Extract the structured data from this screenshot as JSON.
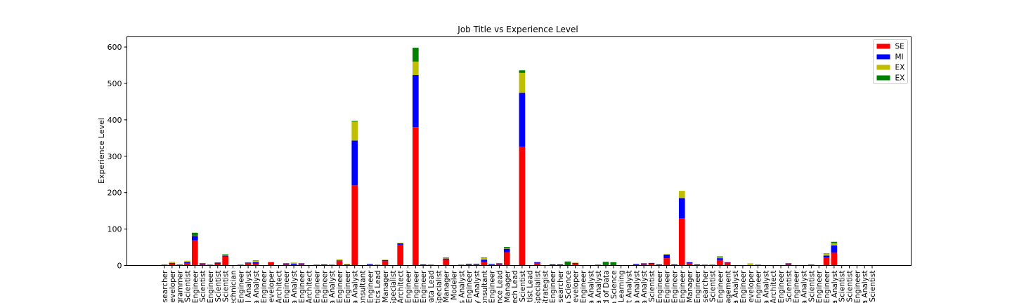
{
  "chart_data": {
    "type": "bar",
    "stacked": true,
    "title": "Job Title vs Experience Level",
    "xlabel": "",
    "ylabel": "Experience Level",
    "ylim": [
      0,
      628
    ],
    "yticks": [
      0,
      100,
      200,
      300,
      400,
      500,
      600
    ],
    "grid": false,
    "legend_position": "top-right",
    "categories": [
      "AI Researcher",
      "AI Developer",
      "AI Programmer",
      "AI Scientist",
      "Analytics Engineer",
      "Applied Data Scientist",
      "Applied Machine Learning Engineer",
      "Applied Machine Learning Scientist",
      "Applied Scientist",
      "Autonomous Vehicle Technician",
      "Azure Data Engineer",
      "BI Analyst",
      "BI Data Analyst",
      "BI Data Engineer",
      "BI Developer",
      "Big Data Architect",
      "Big Data Engineer",
      "Business Data Analyst",
      "Business Intelligence Engineer",
      "Cloud Data Architect",
      "Cloud Data Engineer",
      "Cloud Database Engineer",
      "Compliance Data Analyst",
      "Computer Vision Engineer",
      "Computer Vision Software Engineer",
      "Data Analyst",
      "Data Analytics Consultant",
      "Data Analytics Engineer",
      "Data Analytics Lead",
      "Data Analytics Manager",
      "Data Analytics Specialist",
      "Data Architect",
      "Data DevOps Engineer",
      "Data Engineer",
      "Data Infrastructure Engineer",
      "Data Lead",
      "Data Management Specialist",
      "Data Manager",
      "Data Modeler",
      "Data Operations Analyst",
      "Data Operations Engineer",
      "Data Quality Analyst",
      "Data Science Consultant",
      "Data Science Engineer",
      "Data Science Lead",
      "Data Science Manager",
      "Data Science Tech Lead",
      "Data Scientist",
      "Data Scientist Lead",
      "Data Specialist",
      "Data Strategist",
      "Deep Learning Engineer",
      "Deep Learning Researcher",
      "Director of Data Science",
      "ETL Developer",
      "ETL Engineer",
      "Finance Data Analyst",
      "Financial Data Analyst",
      "Head of Data",
      "Head of Data Science",
      "Head of Machine Learning",
      "Insight Analyst",
      "Lead Data Analyst",
      "Machine Learning Data Analyst",
      "Machine Learning Scientist",
      "Machine Learning Infrastructure Engineer",
      "ML Engineer",
      "MLOps Engineer",
      "Machine Learning Engineer",
      "Machine Learning Manager",
      "Machine Learning Software Engineer",
      "Machine Learning Researcher",
      "Machine Learning Research Scientist",
      "NLP Engineer",
      "Manager Data Management",
      "Marketing Data Analyst",
      "Marketing Data Engineer",
      "Power BI Developer",
      "Principal Data Engineer",
      "Principal Data Analyst",
      "Principal Data Architect",
      "Principal Data Engineer",
      "Principal Data Scientist",
      "Principal Machine Learning Engineer",
      "Product Data Analyst",
      "Research Scientist",
      "Research Engineer",
      "Software Data Engineer",
      "Staff Data Analyst",
      "Staff Data Scientist",
      "Research Scientist",
      "Research Engineer",
      "Product Data Analyst",
      "Staff Data Scientist"
    ],
    "tick_labels_visible": [
      "esearcher",
      "Developer",
      "rogrammer",
      "Scientist",
      "Engineer",
      "Scientist",
      "Engineer",
      "Scientist",
      "Scientist",
      "echnician",
      "Engineer",
      "I Analyst",
      "a Analyst",
      "Engineer",
      "Developer",
      "Architect",
      "Engineer",
      "a Analyst",
      "Engineer",
      "Architect",
      "Engineer",
      "Engineer",
      "a Analyst",
      "Engineer",
      "Engineer",
      "a Analyst",
      "onsultant",
      "Engineer",
      "tics Lead",
      "Manager",
      "Specialist",
      "Architect",
      "Engineer",
      "Engineer",
      "Engineer",
      "Data Lead",
      "Specialist",
      "Manager",
      "a Modeler",
      "s Analyst",
      "Engineer",
      "y Analyst",
      "onsultant",
      "Engineer",
      "nce Lead",
      "Manager",
      "ech Lead",
      "Scientist",
      "tist Lead",
      "Specialist",
      "Strategist",
      "Engineer",
      "esearcher",
      "a Science",
      "Developer",
      "Engineer",
      "a Analyst",
      "a Analyst",
      "d of Data",
      "a Science",
      "Learning",
      "t Analyst",
      "a Analyst",
      "a Analyst",
      "Scientist",
      "Engineer",
      "Engineer",
      "Engineer",
      "Engineer",
      "Manager",
      "Engineer",
      "esearcher",
      "Scientist",
      "Engineer",
      "agement",
      "a Analyst",
      "Engineer",
      "Developer",
      "Engineer",
      "a Analyst",
      "Architect",
      "Engineer",
      "Scientist",
      "Engineer",
      "a Analyst",
      "Scientist",
      "Engineer",
      "Engineer",
      "a Analyst",
      "Scientist",
      "Scientist",
      "Engineer",
      "a Analyst",
      "Scientist"
    ],
    "series": [
      {
        "name": "SE",
        "color": "#ff0000",
        "values": [
          2,
          5,
          1,
          6,
          69,
          4,
          1,
          5,
          25,
          0,
          1,
          6,
          5,
          0,
          9,
          1,
          4,
          3,
          4,
          1,
          1,
          2,
          1,
          12,
          2,
          220,
          1,
          3,
          2,
          12,
          1,
          57,
          1,
          380,
          2,
          1,
          1,
          16,
          1,
          1,
          2,
          3,
          10,
          3,
          4,
          36,
          1,
          326,
          1,
          7,
          1,
          1,
          1,
          1,
          5,
          1,
          1,
          1,
          2,
          1,
          1,
          1,
          2,
          4,
          5,
          2,
          20,
          2,
          130,
          7,
          2,
          1,
          1,
          15,
          8,
          1,
          1,
          1,
          1,
          1,
          1,
          1,
          4,
          1,
          1,
          1,
          1,
          22,
          35,
          1,
          1,
          1,
          1,
          1
        ]
      },
      {
        "name": "MI",
        "color": "#0000ff",
        "values": [
          0,
          2,
          1,
          3,
          12,
          2,
          1,
          3,
          2,
          1,
          1,
          2,
          4,
          1,
          0,
          0,
          2,
          2,
          2,
          0,
          1,
          1,
          1,
          2,
          1,
          123,
          0,
          1,
          0,
          3,
          0,
          4,
          0,
          143,
          1,
          1,
          0,
          3,
          0,
          1,
          2,
          1,
          6,
          1,
          2,
          10,
          0,
          148,
          0,
          2,
          0,
          2,
          2,
          0,
          2,
          0,
          0,
          1,
          0,
          0,
          0,
          0,
          2,
          2,
          2,
          1,
          10,
          1,
          55,
          2,
          1,
          1,
          1,
          5,
          1,
          0,
          0,
          0,
          1,
          0,
          0,
          0,
          2,
          0,
          0,
          1,
          0,
          5,
          20,
          0,
          0,
          0,
          0,
          0
        ]
      },
      {
        "name": "EX",
        "color": "#bfbf00",
        "values": [
          1,
          3,
          1,
          4,
          1,
          1,
          0,
          1,
          3,
          0,
          0,
          1,
          4,
          0,
          1,
          0,
          0,
          3,
          0,
          0,
          0,
          0,
          0,
          3,
          1,
          52,
          0,
          0,
          0,
          1,
          0,
          1,
          0,
          37,
          0,
          0,
          0,
          2,
          0,
          0,
          1,
          1,
          5,
          0,
          0,
          2,
          0,
          55,
          0,
          1,
          0,
          0,
          0,
          0,
          1,
          0,
          0,
          0,
          0,
          0,
          0,
          0,
          0,
          0,
          0,
          0,
          1,
          0,
          20,
          1,
          0,
          0,
          0,
          3,
          0,
          0,
          0,
          5,
          0,
          0,
          0,
          0,
          0,
          0,
          0,
          1,
          0,
          5,
          6,
          0,
          0,
          0,
          0,
          0
        ]
      },
      {
        "name": "EX",
        "color": "#008000",
        "values": [
          0,
          0,
          0,
          0,
          8,
          0,
          0,
          0,
          1,
          0,
          0,
          0,
          1,
          0,
          0,
          0,
          0,
          0,
          0,
          0,
          0,
          0,
          0,
          0,
          0,
          2,
          0,
          0,
          0,
          0,
          0,
          0,
          0,
          38,
          0,
          0,
          0,
          1,
          0,
          0,
          0,
          0,
          1,
          0,
          0,
          3,
          0,
          7,
          0,
          0,
          0,
          0,
          0,
          10,
          0,
          0,
          0,
          0,
          8,
          8,
          0,
          0,
          0,
          0,
          0,
          0,
          0,
          0,
          0,
          0,
          0,
          0,
          0,
          2,
          0,
          0,
          0,
          0,
          0,
          0,
          0,
          0,
          0,
          0,
          0,
          0,
          0,
          1,
          4,
          0,
          0,
          0,
          0,
          0
        ]
      }
    ]
  }
}
